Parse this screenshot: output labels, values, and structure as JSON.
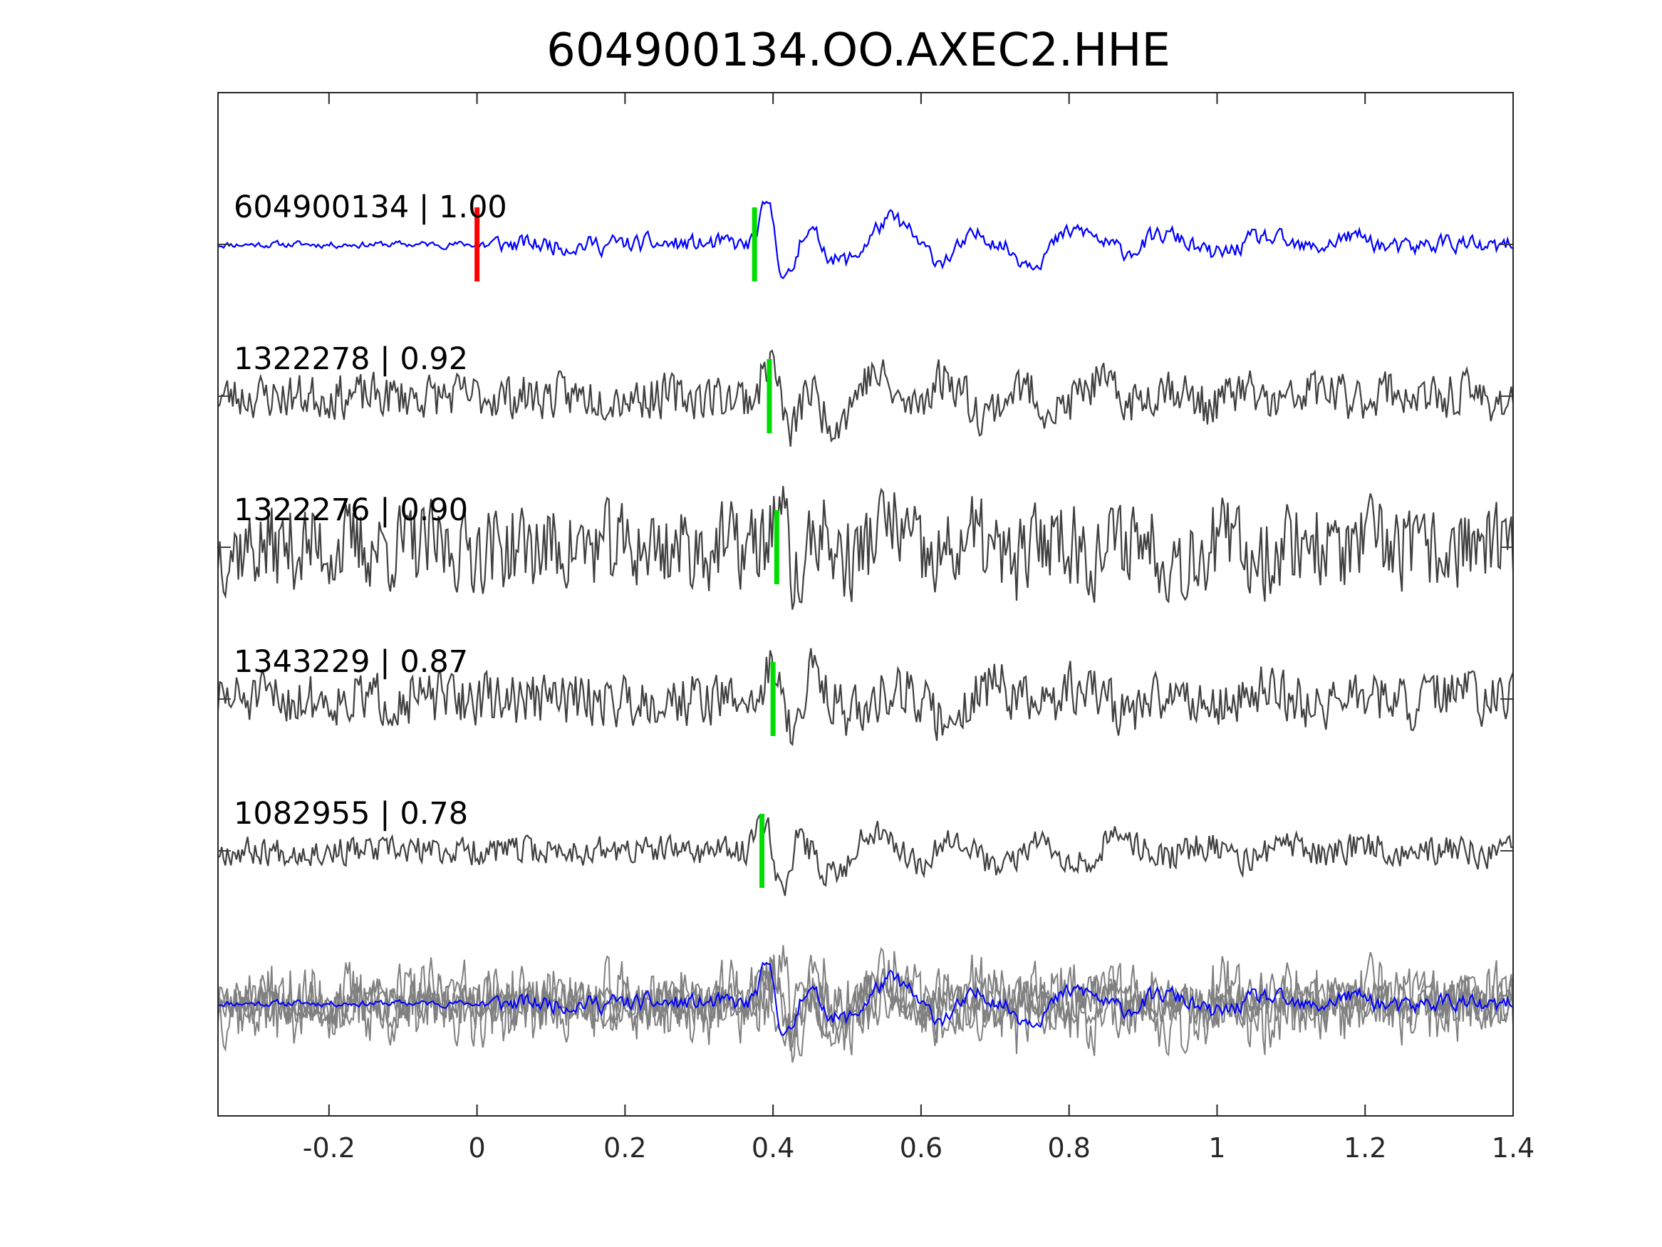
{
  "chart_data": {
    "type": "line",
    "title": "604900134.OO.AXEC2.HHE",
    "xlabel": "",
    "ylabel": "",
    "xlim": [
      -0.35,
      1.4
    ],
    "xticks": [
      -0.2,
      0,
      0.2,
      0.4,
      0.6,
      0.8,
      1,
      1.2,
      1.4
    ],
    "xtick_labels": [
      "-0.2",
      "0",
      "0.2",
      "0.4",
      "0.6",
      "0.8",
      "1",
      "1.2",
      "1.4"
    ],
    "grid": false,
    "colors": {
      "template": "#0000ff",
      "match": "#404040",
      "stack_match": "#808080",
      "origin_marker": "#ff0000",
      "pick_marker": "#00dd00",
      "axes": "#262626"
    },
    "traces": [
      {
        "label": "604900134 | 1.00",
        "id": "604900134",
        "cc": 1.0,
        "template": true,
        "origin_time": 0.0,
        "pick_time": 0.375,
        "seed": 11,
        "peak_time": 0.405,
        "noise": 0.11
      },
      {
        "label": "1322278 | 0.92",
        "id": "1322278",
        "cc": 0.92,
        "template": false,
        "pick_time": 0.395,
        "seed": 23,
        "peak_time": 0.41,
        "noise": 0.28
      },
      {
        "label": "1322276 | 0.90",
        "id": "1322276",
        "cc": 0.9,
        "template": false,
        "pick_time": 0.405,
        "seed": 37,
        "peak_time": 0.42,
        "noise": 0.55
      },
      {
        "label": "1343229 | 0.87",
        "id": "1343229",
        "cc": 0.87,
        "template": false,
        "pick_time": 0.4,
        "seed": 51,
        "peak_time": 0.415,
        "noise": 0.33
      },
      {
        "label": "1082955 | 0.78",
        "id": "1082955",
        "cc": 0.78,
        "template": false,
        "pick_time": 0.385,
        "seed": 67,
        "peak_time": 0.4,
        "noise": 0.18
      }
    ],
    "stack": {
      "description_shown": false
    }
  }
}
